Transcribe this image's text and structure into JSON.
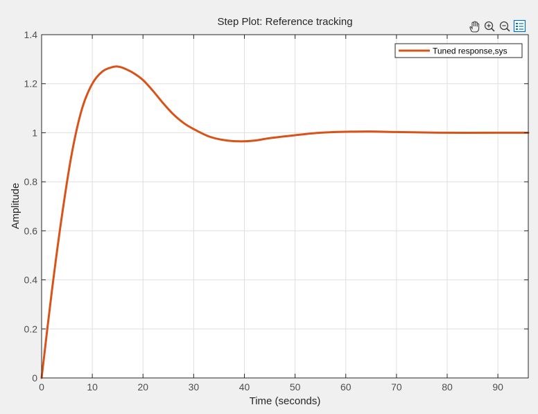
{
  "toolbar": {
    "icons": [
      "pan-hand-icon",
      "zoom-in-icon",
      "zoom-out-icon",
      "legend-toggle-icon"
    ]
  },
  "colors": {
    "figure_background": "#f0f0f0",
    "axes_background": "#ffffff",
    "grid": "#dfdfdf",
    "axis": "#262626",
    "series": "#d95319",
    "toolbar_active": "#0072bd"
  },
  "chart_data": {
    "type": "line",
    "title": "Step Plot: Reference tracking",
    "xlabel": "Time (seconds)",
    "ylabel": "Amplitude",
    "xlim": [
      0,
      96
    ],
    "ylim": [
      0,
      1.4
    ],
    "xticks": [
      "0",
      "10",
      "20",
      "30",
      "40",
      "50",
      "60",
      "70",
      "80",
      "90"
    ],
    "yticks": [
      "0",
      "0.2",
      "0.4",
      "0.6",
      "0.8",
      "1",
      "1.2",
      "1.4"
    ],
    "grid": true,
    "legend_location": "top-right",
    "series": [
      {
        "name": "Tuned response,sys",
        "color": "#d95319",
        "x": [
          0,
          2,
          4,
          6,
          8,
          10,
          12,
          14,
          15,
          16,
          18,
          20,
          22,
          24,
          26,
          28,
          30,
          33,
          36,
          39,
          42,
          45,
          50,
          55,
          60,
          65,
          70,
          80,
          90,
          96
        ],
        "y": [
          0,
          0.35,
          0.66,
          0.92,
          1.1,
          1.2,
          1.25,
          1.268,
          1.27,
          1.265,
          1.245,
          1.215,
          1.17,
          1.12,
          1.075,
          1.04,
          1.015,
          0.985,
          0.97,
          0.965,
          0.968,
          0.978,
          0.99,
          1.0,
          1.004,
          1.005,
          1.003,
          1.0,
          1.0,
          1.0
        ]
      }
    ]
  }
}
